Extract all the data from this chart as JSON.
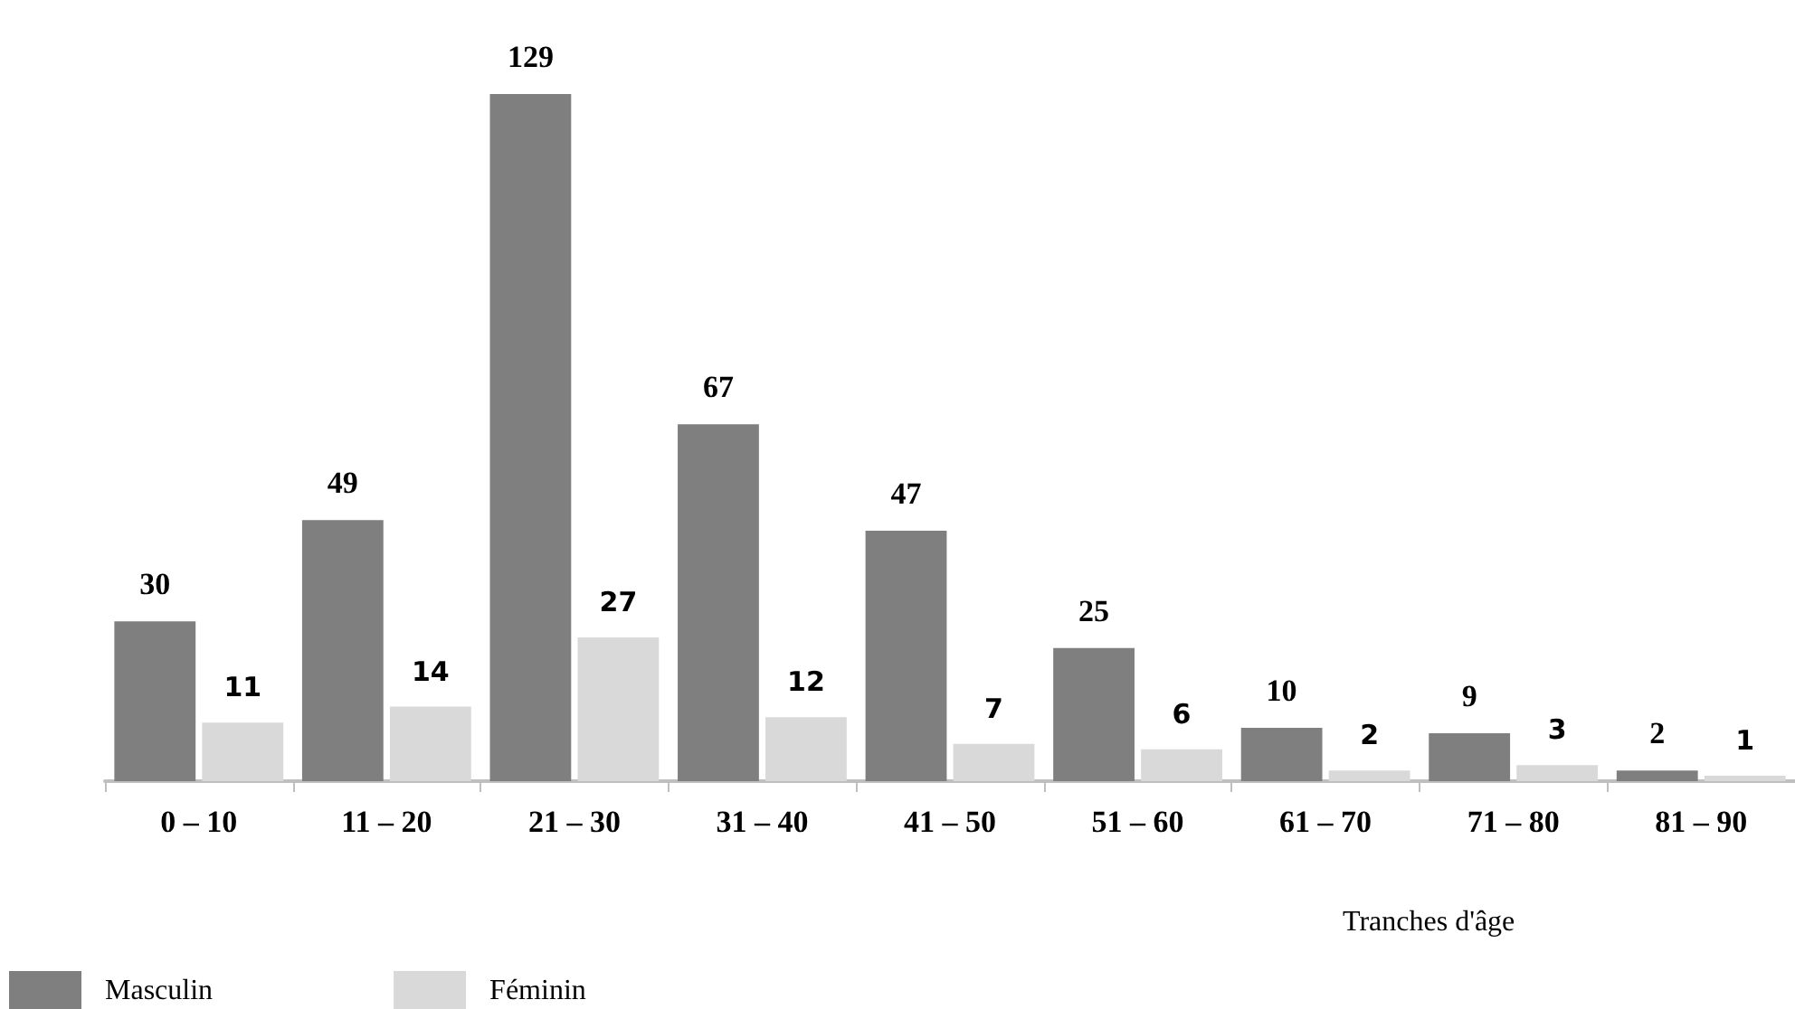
{
  "chart_data": {
    "type": "bar",
    "xlabel": "Tranches d'âge",
    "categories": [
      "0 – 10",
      "11 – 20",
      "21 – 30",
      "31 – 40",
      "41 – 50",
      "51 – 60",
      "61 – 70",
      "71 – 80",
      "81 – 90"
    ],
    "series": [
      {
        "name": "Masculin",
        "color": "#7f7f7f",
        "values": [
          30,
          49,
          129,
          67,
          47,
          25,
          10,
          9,
          2
        ]
      },
      {
        "name": "Féminin",
        "color": "#d9d9d9",
        "values": [
          11,
          14,
          27,
          12,
          7,
          6,
          2,
          3,
          1
        ]
      }
    ],
    "data_labels": true,
    "legend": "bottom left"
  }
}
